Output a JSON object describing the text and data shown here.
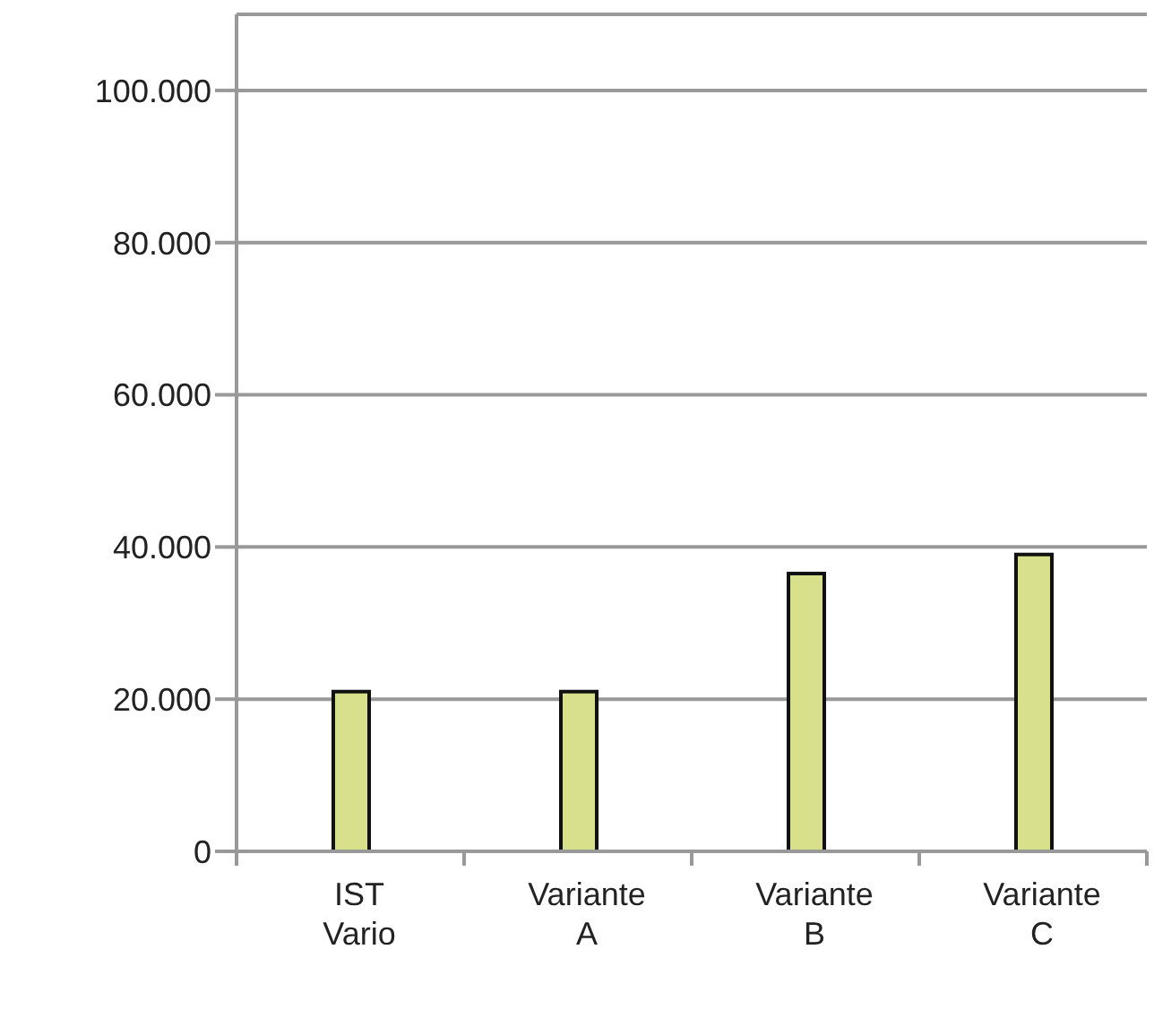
{
  "chart_data": {
    "type": "bar",
    "categories": [
      "IST Vario",
      "Variante A",
      "Variante B",
      "Variante C"
    ],
    "values": [
      21000,
      21000,
      36500,
      39000
    ],
    "color": "#d9e08b",
    "ylim": [
      0,
      110000
    ],
    "yticks": [
      {
        "value": 0,
        "label": "0"
      },
      {
        "value": 20000,
        "label": "20.000"
      },
      {
        "value": 40000,
        "label": "40.000"
      },
      {
        "value": 60000,
        "label": "60.000"
      },
      {
        "value": 80000,
        "label": "80.000"
      },
      {
        "value": 100000,
        "label": "100.000"
      }
    ],
    "grid": "y",
    "legend": false
  }
}
